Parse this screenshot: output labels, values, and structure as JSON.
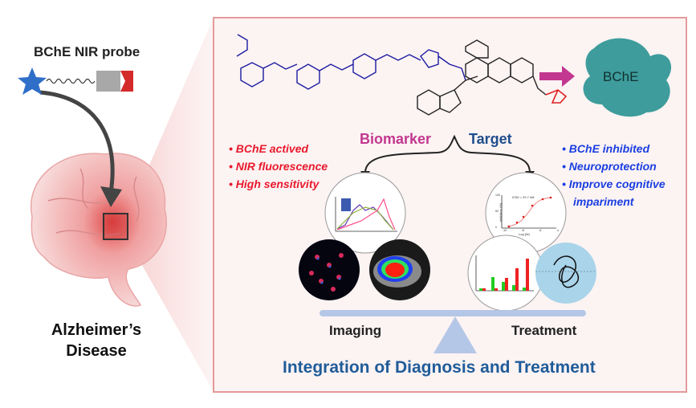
{
  "probe": {
    "label": "BChE NIR probe"
  },
  "disease": {
    "line1": "Alzheimer’s",
    "line2": "Disease"
  },
  "enzyme": {
    "label": "BChE"
  },
  "imaging_features": [
    "BChE actived",
    "NIR fluorescence",
    "High sensitivity"
  ],
  "treatment_features": [
    "BChE inhibited",
    "Neuroprotection",
    "Improve cognitive",
    "impariment"
  ],
  "branches": {
    "left": "Biomarker",
    "right": "Target"
  },
  "balance": {
    "left": "Imaging",
    "right": "Treatment"
  },
  "title": "Integration of Diagnosis and Treatment",
  "inhibition_plot": {
    "annotation": "IC50 = 29.7 nM",
    "ylabel": "Inhibition (%)",
    "xlabel": "Log (M)",
    "x_ticks": [
      "-10",
      "-8",
      "-6",
      "-4"
    ],
    "y_ticks": [
      "0",
      "50",
      "100"
    ]
  },
  "colors": {
    "red": "#e8192c",
    "blue": "#1a3ee0",
    "magenta": "#c2378f",
    "navy": "#1f4e8c",
    "panel_border": "#e49a9a",
    "teal": "#3e9c9c"
  }
}
